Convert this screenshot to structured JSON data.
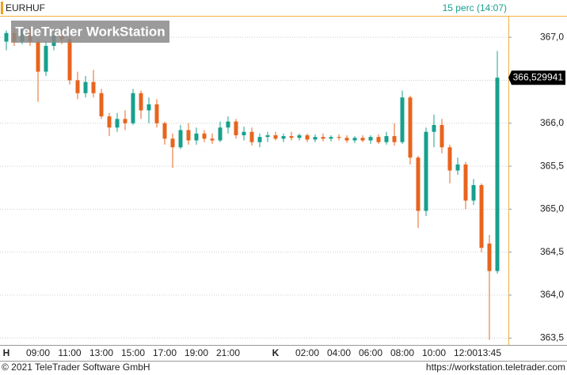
{
  "chart_data": {
    "type": "candlestick",
    "title": "EURHUF",
    "subtitle": "15 perc (14:07)",
    "categories": [
      "H",
      null,
      null,
      null,
      "09:00",
      null,
      null,
      null,
      "11:00",
      null,
      null,
      null,
      "13:00",
      null,
      null,
      null,
      "15:00",
      null,
      null,
      null,
      "17:00",
      null,
      null,
      null,
      "19:00",
      null,
      null,
      null,
      "21:00",
      null,
      null,
      null,
      null,
      null,
      "K",
      null,
      null,
      null,
      "02:00",
      null,
      null,
      null,
      "04:00",
      null,
      null,
      null,
      "06:00",
      null,
      null,
      null,
      "08:00",
      null,
      null,
      null,
      "10:00",
      null,
      null,
      null,
      "12:00",
      null,
      null,
      "13:45",
      null
    ],
    "open": [
      366.95,
      367.05,
      366.95,
      367.08,
      366.95,
      366.6,
      366.9,
      367.02,
      366.98,
      366.5,
      366.35,
      366.48,
      366.35,
      366.08,
      365.95,
      366.05,
      366.0,
      366.35,
      366.15,
      366.22,
      366.0,
      365.82,
      365.72,
      365.92,
      365.8,
      365.88,
      365.82,
      365.8,
      365.95,
      366.02,
      365.86,
      365.9,
      365.78,
      365.84,
      365.86,
      365.82,
      365.85,
      365.83,
      365.86,
      365.81,
      365.84,
      365.82,
      365.84,
      365.83,
      365.8,
      365.83,
      365.8,
      365.84,
      365.78,
      365.85,
      365.78,
      366.3,
      365.6,
      364.98,
      365.9,
      365.98,
      365.72,
      365.45,
      365.52,
      365.1,
      365.28,
      364.6,
      364.28
    ],
    "high": [
      367.08,
      367.1,
      367.12,
      367.12,
      366.98,
      366.95,
      367.08,
      367.12,
      367.02,
      366.6,
      366.55,
      366.62,
      366.4,
      366.12,
      366.12,
      366.15,
      366.4,
      366.38,
      366.3,
      366.28,
      366.02,
      365.88,
      365.98,
      366.0,
      365.95,
      365.92,
      365.88,
      366.02,
      366.08,
      366.05,
      365.96,
      365.95,
      365.88,
      365.9,
      365.9,
      365.88,
      365.9,
      365.88,
      365.88,
      365.87,
      365.88,
      365.86,
      365.87,
      365.86,
      365.85,
      365.86,
      365.86,
      365.87,
      365.9,
      366.0,
      366.38,
      366.32,
      365.62,
      365.95,
      366.1,
      366.05,
      365.75,
      365.6,
      365.55,
      365.35,
      365.3,
      364.7,
      366.84
    ],
    "low": [
      366.85,
      366.9,
      366.92,
      366.9,
      366.25,
      366.55,
      366.85,
      366.92,
      366.45,
      366.28,
      366.3,
      366.3,
      366.05,
      365.85,
      365.9,
      365.92,
      365.98,
      366.05,
      366.0,
      365.95,
      365.75,
      365.48,
      365.7,
      365.75,
      365.75,
      365.78,
      365.76,
      365.78,
      365.88,
      365.82,
      365.8,
      365.74,
      365.72,
      365.78,
      365.8,
      365.78,
      365.8,
      365.8,
      365.78,
      365.78,
      365.79,
      365.79,
      365.8,
      365.77,
      365.77,
      365.78,
      365.76,
      365.76,
      365.75,
      365.74,
      365.76,
      365.52,
      364.78,
      364.92,
      365.72,
      365.65,
      365.3,
      365.4,
      365.0,
      365.05,
      364.5,
      363.48,
      364.25
    ],
    "close": [
      367.05,
      366.95,
      367.08,
      366.95,
      366.6,
      366.9,
      367.02,
      366.98,
      366.5,
      366.35,
      366.48,
      366.35,
      366.08,
      365.95,
      366.05,
      366.0,
      366.35,
      366.15,
      366.22,
      366.0,
      365.82,
      365.72,
      365.92,
      365.8,
      365.88,
      365.82,
      365.8,
      365.95,
      366.02,
      365.86,
      365.9,
      365.78,
      365.84,
      365.86,
      365.82,
      365.85,
      365.83,
      365.86,
      365.81,
      365.84,
      365.82,
      365.84,
      365.83,
      365.8,
      365.83,
      365.8,
      365.84,
      365.78,
      365.85,
      365.78,
      366.3,
      365.6,
      364.98,
      365.9,
      365.98,
      365.72,
      365.45,
      365.52,
      365.1,
      365.28,
      364.55,
      364.28,
      366.53
    ],
    "up_color": "#17a08e",
    "down_color": "#e8641e",
    "ylim": [
      363.42,
      367.25
    ],
    "yticks": [
      {
        "value": 363.5,
        "label": "363,5"
      },
      {
        "value": 364.0,
        "label": "364,0"
      },
      {
        "value": 364.5,
        "label": "364,5"
      },
      {
        "value": 365.0,
        "label": "365,0"
      },
      {
        "value": 365.5,
        "label": "365,5"
      },
      {
        "value": 366.0,
        "label": "366,0"
      },
      {
        "value": 366.5,
        "label": "366,5"
      },
      {
        "value": 367.0,
        "label": "367,0"
      }
    ],
    "grid": true,
    "last_price": {
      "value": 366.529941,
      "label": "366,529941"
    }
  },
  "watermark": "TeleTrader WorkStation",
  "footer": {
    "copyright": "© 2021 TeleTrader Software GmbH",
    "url": "https://workstation.teletrader.com"
  }
}
